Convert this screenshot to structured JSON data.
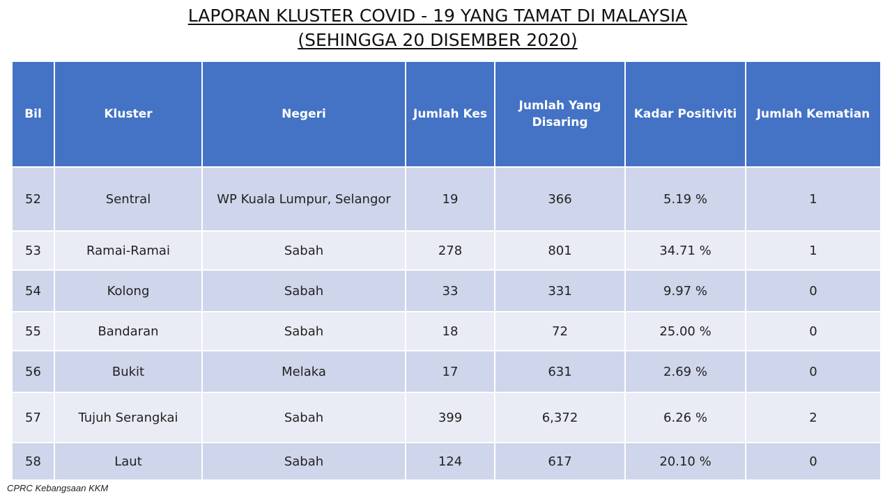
{
  "title": {
    "line1": "LAPORAN KLUSTER COVID - 19 YANG TAMAT DI MALAYSIA",
    "line2": "(SEHINGGA 20 DISEMBER 2020)"
  },
  "table": {
    "headers": [
      "Bil",
      "Kluster",
      "Negeri",
      "Jumlah Kes",
      "Jumlah Yang Disaring",
      "Kadar Positiviti",
      "Jumlah Kematian"
    ],
    "rows": [
      [
        "52",
        "Sentral",
        "WP Kuala Lumpur, Selangor",
        "19",
        "366",
        "5.19 %",
        "1"
      ],
      [
        "53",
        "Ramai-Ramai",
        "Sabah",
        "278",
        "801",
        "34.71 %",
        "1"
      ],
      [
        "54",
        "Kolong",
        "Sabah",
        "33",
        "331",
        "9.97 %",
        "0"
      ],
      [
        "55",
        "Bandaran",
        "Sabah",
        "18",
        "72",
        "25.00 %",
        "0"
      ],
      [
        "56",
        "Bukit",
        "Melaka",
        "17",
        "631",
        "2.69 %",
        "0"
      ],
      [
        "57",
        "Tujuh Serangkai",
        "Sabah",
        "399",
        "6,372",
        "6.26 %",
        "2"
      ],
      [
        "58",
        "Laut",
        "Sabah",
        "124",
        "617",
        "20.10 %",
        "0"
      ]
    ]
  },
  "footer": {
    "source": "CPRC Kebangsaan KKM"
  }
}
